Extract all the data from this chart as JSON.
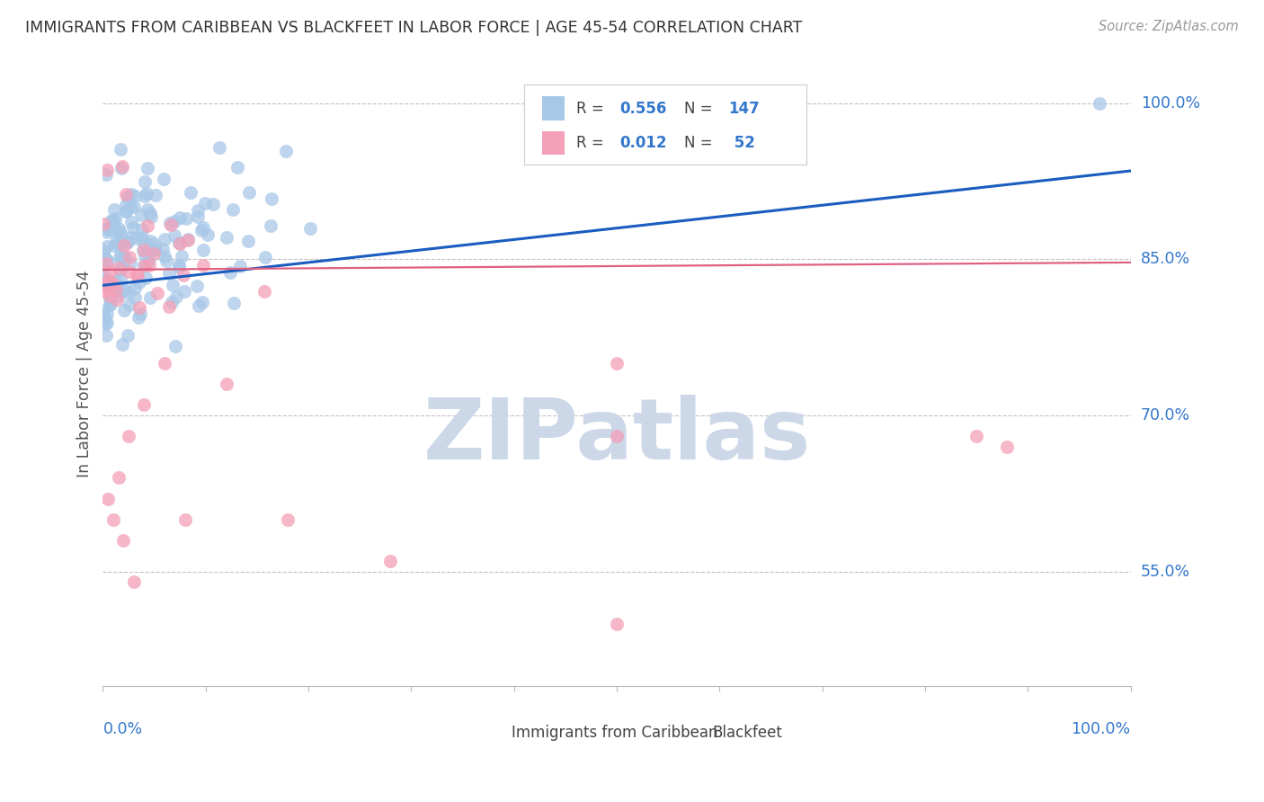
{
  "title": "IMMIGRANTS FROM CARIBBEAN VS BLACKFEET IN LABOR FORCE | AGE 45-54 CORRELATION CHART",
  "source": "Source: ZipAtlas.com",
  "ylabel": "In Labor Force | Age 45-54",
  "ytick_labels": [
    "100.0%",
    "85.0%",
    "70.0%",
    "55.0%"
  ],
  "ytick_values": [
    1.0,
    0.85,
    0.7,
    0.55
  ],
  "legend1_label": "Immigrants from Caribbean",
  "legend2_label": "Blackfeet",
  "R_blue": 0.556,
  "N_blue": 147,
  "R_pink": 0.012,
  "N_pink": 52,
  "blue_color": "#a8c8e8",
  "pink_color": "#f4a0b8",
  "line_blue": "#1a5cbf",
  "line_pink": "#e06080",
  "title_color": "#333333",
  "axis_color": "#bbbbbb",
  "tick_color_blue": "#3377cc",
  "watermark_color": "#ccd8e8",
  "background_color": "#ffffff",
  "seed": 42,
  "xmin": 0.0,
  "xmax": 1.0,
  "ymin": 0.44,
  "ymax": 1.04,
  "blue_line_y0": 0.825,
  "blue_line_y1": 0.935,
  "pink_line_y0": 0.84,
  "pink_line_y1": 0.847
}
